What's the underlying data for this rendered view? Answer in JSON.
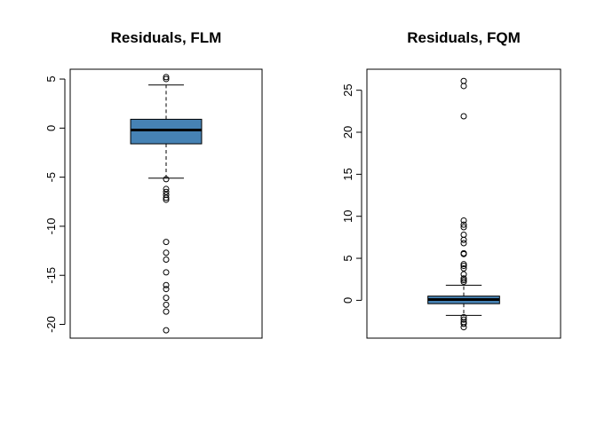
{
  "chart_data": [
    {
      "type": "boxplot",
      "title": "Residuals, FLM",
      "xlabel": "",
      "ylabel": "",
      "ylim": [
        -21.4,
        6.0
      ],
      "yticks": [
        5,
        0,
        -5,
        -10,
        -15,
        -20
      ],
      "box_color": "#4682B4",
      "stats": {
        "lower_whisker": -5.1,
        "q1": -1.6,
        "median": -0.2,
        "q3": 0.9,
        "upper_whisker": 4.4
      },
      "outliers": [
        5.2,
        5.0,
        -5.2,
        -6.2,
        -6.5,
        -6.8,
        -7.1,
        -7.3,
        -11.6,
        -12.7,
        -13.4,
        -14.7,
        -16.0,
        -16.4,
        -17.3,
        -18.0,
        -18.7,
        -20.6
      ]
    },
    {
      "type": "boxplot",
      "title": "Residuals, FQM",
      "xlabel": "",
      "ylabel": "",
      "ylim": [
        -4.5,
        27.5
      ],
      "yticks": [
        0,
        5,
        10,
        15,
        20,
        25
      ],
      "box_color": "#4682B4",
      "stats": {
        "lower_whisker": -1.8,
        "q1": -0.4,
        "median": 0.1,
        "q3": 0.5,
        "upper_whisker": 1.8
      },
      "outliers": [
        26.1,
        25.5,
        21.9,
        9.5,
        9.0,
        8.7,
        7.8,
        7.2,
        6.8,
        5.6,
        5.5,
        4.3,
        4.1,
        3.8,
        3.1,
        2.6,
        2.4,
        2.2,
        -2.0,
        -2.3,
        -2.6,
        -2.8,
        -3.2
      ]
    }
  ]
}
